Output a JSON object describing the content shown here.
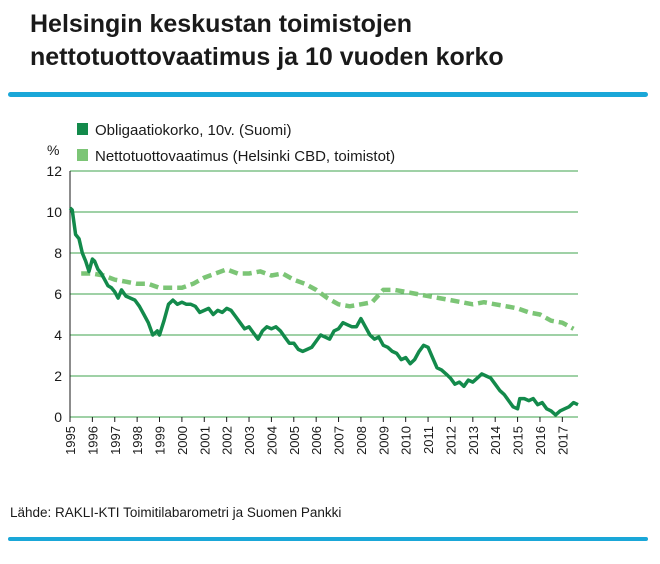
{
  "header": {
    "title_line1": "Helsingin keskustan toimistojen",
    "title_line2": "nettotuottovaatimus ja 10 vuoden korko"
  },
  "footer": {
    "source": "Lähde: RAKLI-KTI Toimitilabarometri ja Suomen Pankki"
  },
  "colors": {
    "accent": "#1aa7d8",
    "bond": "#138a4b",
    "yield": "#7cc576",
    "grid": "#3fa34d"
  },
  "chart_data": {
    "type": "line",
    "ylabel": "%",
    "ylim": [
      0,
      12
    ],
    "yticks": [
      "0",
      "2",
      "4",
      "6",
      "8",
      "10",
      "12"
    ],
    "xlim": [
      1995,
      2017.7
    ],
    "xticks": [
      "1995",
      "1996",
      "1997",
      "1998",
      "1999",
      "2000",
      "2001",
      "2002",
      "2003",
      "2004",
      "2005",
      "2006",
      "2007",
      "2008",
      "2009",
      "2010",
      "2011",
      "2012",
      "2013",
      "2014",
      "2015",
      "2016",
      "2017"
    ],
    "legend_position": "top-left",
    "grid": true,
    "series": [
      {
        "name": "Obligaatiokorko, 10v. (Suomi)",
        "style": "solid",
        "x": [
          1995.0,
          1995.1,
          1995.25,
          1995.4,
          1995.55,
          1995.7,
          1995.85,
          1996.0,
          1996.1,
          1996.25,
          1996.4,
          1996.55,
          1996.7,
          1996.85,
          1997.0,
          1997.15,
          1997.3,
          1997.5,
          1997.7,
          1997.9,
          1998.1,
          1998.3,
          1998.5,
          1998.7,
          1998.9,
          1999.0,
          1999.2,
          1999.4,
          1999.6,
          1999.8,
          2000.0,
          2000.2,
          2000.4,
          2000.6,
          2000.8,
          2001.0,
          2001.2,
          2001.4,
          2001.6,
          2001.8,
          2002.0,
          2002.2,
          2002.4,
          2002.6,
          2002.8,
          2003.0,
          2003.2,
          2003.4,
          2003.6,
          2003.8,
          2004.0,
          2004.2,
          2004.4,
          2004.6,
          2004.8,
          2005.0,
          2005.2,
          2005.4,
          2005.6,
          2005.8,
          2006.0,
          2006.2,
          2006.4,
          2006.6,
          2006.8,
          2007.0,
          2007.2,
          2007.4,
          2007.6,
          2007.8,
          2008.0,
          2008.2,
          2008.4,
          2008.6,
          2008.8,
          2009.0,
          2009.2,
          2009.4,
          2009.6,
          2009.8,
          2010.0,
          2010.2,
          2010.4,
          2010.6,
          2010.8,
          2011.0,
          2011.2,
          2011.4,
          2011.6,
          2011.8,
          2012.0,
          2012.2,
          2012.4,
          2012.6,
          2012.8,
          2013.0,
          2013.2,
          2013.4,
          2013.6,
          2013.8,
          2014.0,
          2014.2,
          2014.4,
          2014.6,
          2014.8,
          2015.0,
          2015.1,
          2015.3,
          2015.5,
          2015.7,
          2015.9,
          2016.1,
          2016.3,
          2016.5,
          2016.7,
          2016.9,
          2017.1,
          2017.3,
          2017.5,
          2017.7
        ],
        "values": [
          10.2,
          10.1,
          8.9,
          8.7,
          8.0,
          7.6,
          7.1,
          7.7,
          7.6,
          7.2,
          7.0,
          6.7,
          6.4,
          6.3,
          6.1,
          5.8,
          6.2,
          5.9,
          5.8,
          5.7,
          5.4,
          5.0,
          4.6,
          4.0,
          4.2,
          4.0,
          4.7,
          5.5,
          5.7,
          5.5,
          5.6,
          5.5,
          5.5,
          5.4,
          5.1,
          5.2,
          5.3,
          5.0,
          5.2,
          5.1,
          5.3,
          5.2,
          4.9,
          4.6,
          4.3,
          4.4,
          4.1,
          3.8,
          4.2,
          4.4,
          4.3,
          4.4,
          4.2,
          3.9,
          3.6,
          3.6,
          3.3,
          3.2,
          3.3,
          3.4,
          3.7,
          4.0,
          3.9,
          3.8,
          4.2,
          4.3,
          4.6,
          4.5,
          4.4,
          4.4,
          4.8,
          4.4,
          4.0,
          3.8,
          3.9,
          3.5,
          3.4,
          3.2,
          3.1,
          2.8,
          2.9,
          2.6,
          2.8,
          3.2,
          3.5,
          3.4,
          2.9,
          2.4,
          2.3,
          2.1,
          1.9,
          1.6,
          1.7,
          1.5,
          1.8,
          1.7,
          1.9,
          2.1,
          2.0,
          1.9,
          1.6,
          1.3,
          1.1,
          0.8,
          0.5,
          0.4,
          0.9,
          0.9,
          0.8,
          0.9,
          0.6,
          0.7,
          0.4,
          0.3,
          0.1,
          0.3,
          0.4,
          0.5,
          0.7,
          0.6
        ]
      },
      {
        "name": "Nettotuottovaatimus (Helsinki CBD, toimistot)",
        "style": "dashed",
        "x": [
          1995.5,
          1996.0,
          1996.5,
          1997.0,
          1997.5,
          1998.0,
          1998.5,
          1999.0,
          1999.5,
          2000.0,
          2000.5,
          2001.0,
          2001.5,
          2002.0,
          2002.5,
          2003.0,
          2003.5,
          2004.0,
          2004.5,
          2005.0,
          2005.5,
          2006.0,
          2006.5,
          2007.0,
          2007.5,
          2008.0,
          2008.5,
          2009.0,
          2009.5,
          2010.0,
          2010.5,
          2011.0,
          2011.5,
          2012.0,
          2012.5,
          2013.0,
          2013.5,
          2014.0,
          2014.5,
          2015.0,
          2015.5,
          2016.0,
          2016.5,
          2017.0,
          2017.5
        ],
        "values": [
          7.0,
          7.0,
          6.9,
          6.7,
          6.6,
          6.5,
          6.5,
          6.3,
          6.3,
          6.3,
          6.5,
          6.8,
          7.0,
          7.2,
          7.0,
          7.0,
          7.1,
          6.9,
          7.0,
          6.7,
          6.5,
          6.2,
          5.8,
          5.5,
          5.4,
          5.5,
          5.6,
          6.2,
          6.2,
          6.1,
          6.0,
          5.9,
          5.8,
          5.7,
          5.6,
          5.5,
          5.6,
          5.5,
          5.4,
          5.3,
          5.1,
          5.0,
          4.7,
          4.6,
          4.3
        ]
      }
    ]
  }
}
